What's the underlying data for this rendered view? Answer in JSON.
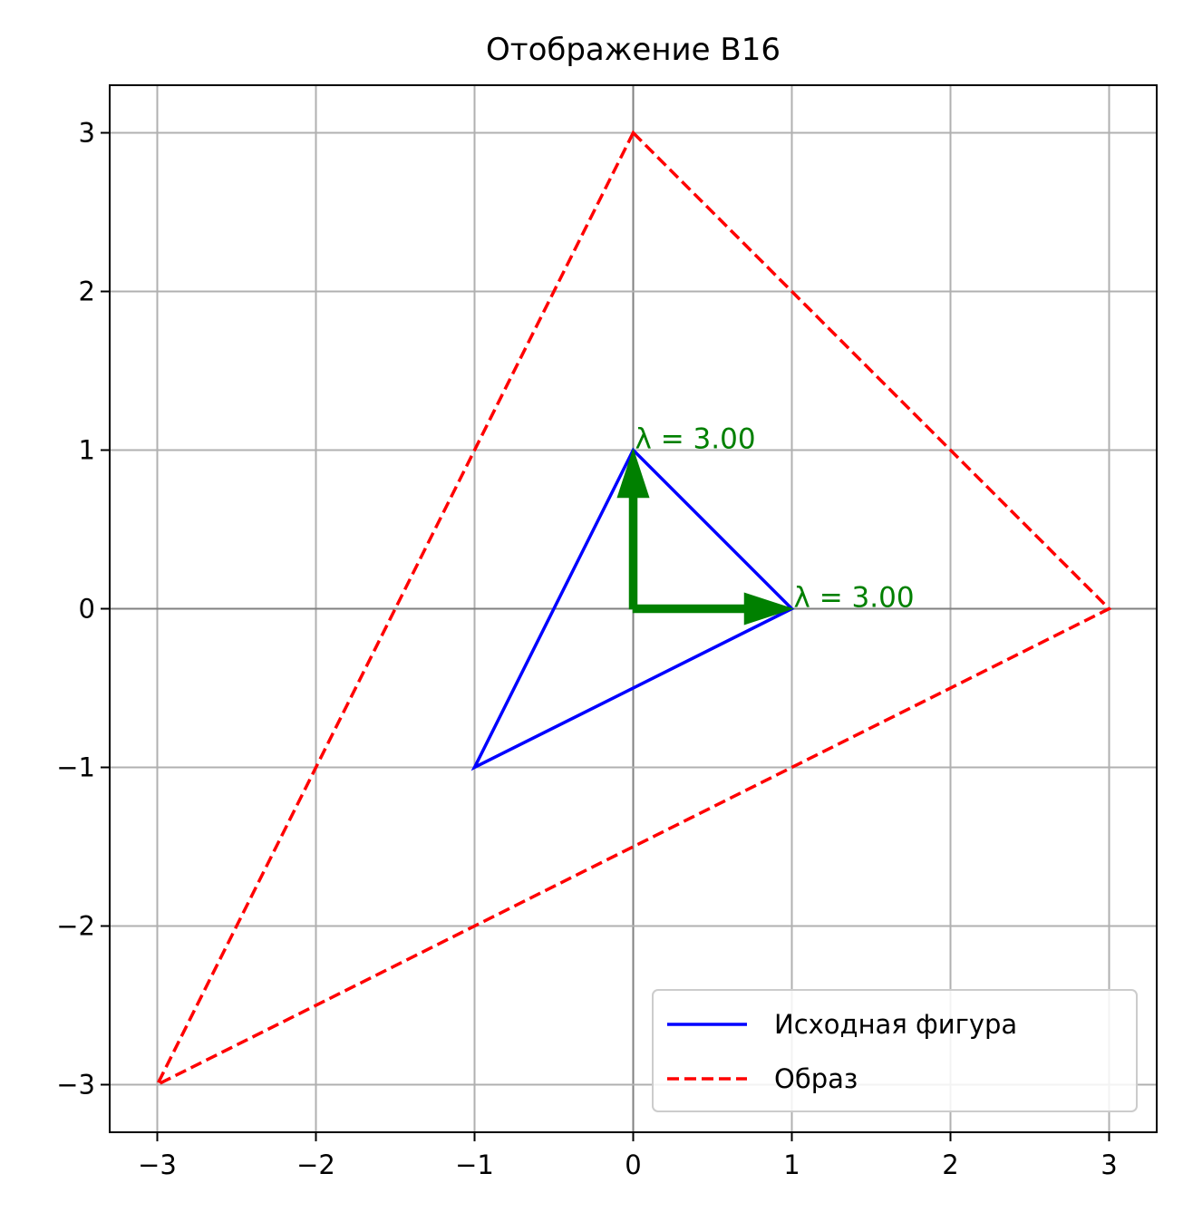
{
  "chart_data": {
    "type": "line",
    "title": "Отображение B16",
    "xlabel": "",
    "ylabel": "",
    "xlim": [
      -3.3,
      3.3
    ],
    "ylim": [
      -3.3,
      3.3
    ],
    "xticks": [
      -3,
      -2,
      -1,
      0,
      1,
      2,
      3
    ],
    "yticks": [
      -3,
      -2,
      -1,
      0,
      1,
      2,
      3
    ],
    "xtick_labels": [
      "−3",
      "−2",
      "−1",
      "0",
      "1",
      "2",
      "3"
    ],
    "ytick_labels": [
      "−3",
      "−2",
      "−1",
      "0",
      "1",
      "2",
      "3"
    ],
    "grid": true,
    "legend_position": "lower-right",
    "series": [
      {
        "name": "Исходная фигура",
        "color": "#0000ff",
        "style": "solid",
        "closed": true,
        "points": [
          [
            0,
            1
          ],
          [
            1,
            0
          ],
          [
            -1,
            -1
          ]
        ]
      },
      {
        "name": "Образ",
        "color": "#ff0000",
        "style": "dashed",
        "closed": true,
        "points": [
          [
            0,
            3
          ],
          [
            3,
            0
          ],
          [
            -3,
            -3
          ]
        ]
      }
    ],
    "eigenvectors": [
      {
        "from": [
          0,
          0
        ],
        "to": [
          1,
          0
        ],
        "label": "λ = 3.00",
        "label_at": [
          1,
          0
        ]
      },
      {
        "from": [
          0,
          0
        ],
        "to": [
          0,
          1
        ],
        "label": "λ = 3.00",
        "label_at": [
          0,
          1
        ]
      }
    ],
    "eigen_color": "#008000"
  }
}
